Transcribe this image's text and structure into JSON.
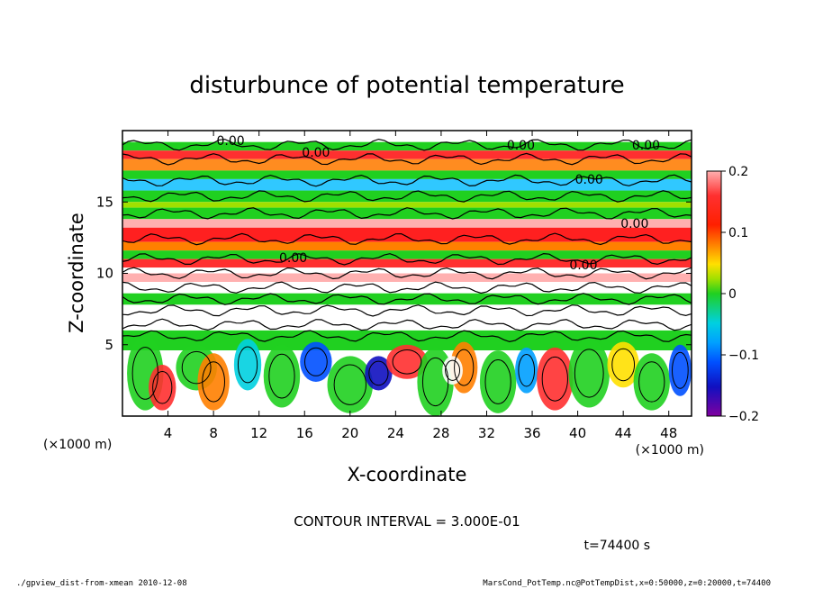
{
  "chart_data": {
    "type": "heatmap",
    "title": "disturbunce of potential temperature",
    "xlabel": "X-coordinate",
    "ylabel": "Z-coordinate",
    "x_unit": "(×1000 m)",
    "y_unit": "(×1000 m)",
    "xlim": [
      0,
      50
    ],
    "ylim": [
      0,
      20
    ],
    "x_ticks": [
      4,
      8,
      12,
      16,
      20,
      24,
      28,
      32,
      36,
      40,
      44,
      48
    ],
    "y_ticks": [
      5,
      10,
      15
    ],
    "colorbar": {
      "range": [
        -0.2,
        0.2
      ],
      "tick_values": [
        0.2,
        0.1,
        0,
        -0.1,
        -0.2
      ],
      "tick_labels": [
        "0.2",
        "0.1",
        "0",
        "−0.1",
        "−0.2"
      ]
    },
    "contour_labels": [
      {
        "text": "0.00",
        "x": 9.5,
        "z": 19.3
      },
      {
        "text": "0.00",
        "x": 17,
        "z": 18.5
      },
      {
        "text": "0.00",
        "x": 35,
        "z": 19.0
      },
      {
        "text": "0.00",
        "x": 46,
        "z": 19.0
      },
      {
        "text": "0.00",
        "x": 41,
        "z": 16.6
      },
      {
        "text": "0.00",
        "x": 45,
        "z": 13.5
      },
      {
        "text": "0.00",
        "x": 15,
        "z": 11.1
      },
      {
        "text": "0.00",
        "x": 40.5,
        "z": 10.6
      }
    ],
    "legend": "none"
  },
  "contour_interval": "CONTOUR INTERVAL = 3.000E-01",
  "time_label": "t=74400 s",
  "footer": {
    "left": "./gpview_dist-from-xmean   2010-12-08",
    "right": "MarsCond_PotTemp.nc@PotTempDist,x=0:50000,z=0:20000,t=74400"
  }
}
